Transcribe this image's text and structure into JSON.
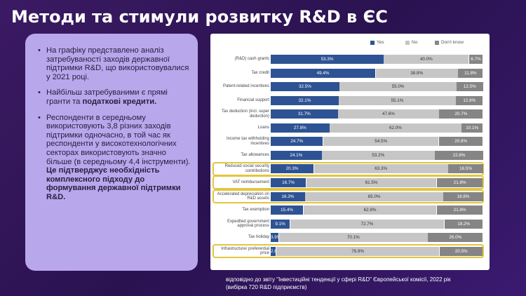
{
  "slide": {
    "title": "Методи та стимули розвитку R&D в ЄС",
    "footer_line1": "відповідно до звіту \"Інвестиційні тенденції у сфері R&D\" Європейської комісії, 2022 рік",
    "footer_line2": "(вибірка 720 R&D підприємств)"
  },
  "left_card": {
    "bullet_char": "•",
    "p1": "На графіку представлено аналіз затребуваності заходів державної підтримки R&D, що використовувалися у 2021 році.",
    "p2_pre": "Найбільш затребуваними є прямі гранти та ",
    "p2_bold": "податкові кредити.",
    "p3_text": "Респонденти в середньому використовують 3,8 різних заходів підтримки одночасно, в той час як респонденти у високотехнологічних секторах використовують значно більше (в середньому 4,4 інструменти).",
    "p3_bold": "Це підтверджує необхідність комплексного підходу до формування державної підтримки R&D."
  },
  "chart_data": {
    "type": "bar",
    "stacked": "horizontal-100%",
    "legend": [
      "Yes",
      "No",
      "Don't know"
    ],
    "legend_placement": "top-right",
    "colors": {
      "Yes": "#2e5394",
      "No": "#c6c6c6",
      "Don't know": "#858585",
      "highlight": "#e3c53d"
    },
    "categories": [
      "(R&D) cash grants",
      "Tax credit",
      "Patent-related incentives",
      "Financial support",
      "Tax deduction (incl. super deduction)",
      "Loans",
      "Income tax withholding incentives",
      "Tax allowances",
      "Reduced social security contributions",
      "VAT reimbursement",
      "Accelerated depreciation on R&D assets",
      "Tax exemption",
      "Expedited government approval process",
      "Tax holiday",
      "Infrastructure/ preferential price"
    ],
    "series": [
      {
        "name": "Yes",
        "values": [
          53.3,
          49.4,
          32.5,
          32.1,
          31.7,
          27.8,
          24.7,
          24.1,
          20.3,
          16.7,
          16.3,
          15.4,
          9.1,
          3.9,
          2.6
        ]
      },
      {
        "name": "No",
        "values": [
          40.0,
          38.8,
          55.0,
          55.1,
          47.6,
          62.0,
          54.5,
          53.2,
          63.3,
          61.5,
          65.0,
          62.8,
          72.7,
          70.1,
          76.9
        ]
      },
      {
        "name": "Don't know",
        "values": [
          6.7,
          11.8,
          12.5,
          12.8,
          20.7,
          10.1,
          20.8,
          22.8,
          16.5,
          21.8,
          18.8,
          21.8,
          18.2,
          26.0,
          20.5
        ]
      }
    ],
    "yes_labels": [
      "53.3%",
      "49.4%",
      "32.5%",
      "32.1%",
      "31.7%",
      "27.8%",
      "24.7%",
      "24.1%",
      "20.3%",
      "16.7%",
      "16.3%",
      "15.4%",
      "9.1%",
      "3.9%",
      "2.6%"
    ],
    "no_labels": [
      "40.0%",
      "38.8%",
      "55.0%",
      "55.1%",
      "47.6%",
      "62.0%",
      "54.5%",
      "53.2%",
      "63.3%",
      "61.5%",
      "65.0%",
      "62.8%",
      "72.7%",
      "70.1%",
      "76.9%"
    ],
    "dk_labels": [
      "6.7%",
      "11.8%",
      "12.5%",
      "12.8%",
      "20.7%",
      "10.1%",
      "20.8%",
      "22.8%",
      "16.5%",
      "21.8%",
      "18.8%",
      "21.8%",
      "18.2%",
      "26.0%",
      "20.5%"
    ],
    "highlighted_categories": [
      "Reduced social security contributions",
      "VAT reimbursement",
      "Accelerated depreciation on R&D assets",
      "Infrastructure/ preferential price"
    ],
    "xlim": [
      0,
      100
    ]
  }
}
